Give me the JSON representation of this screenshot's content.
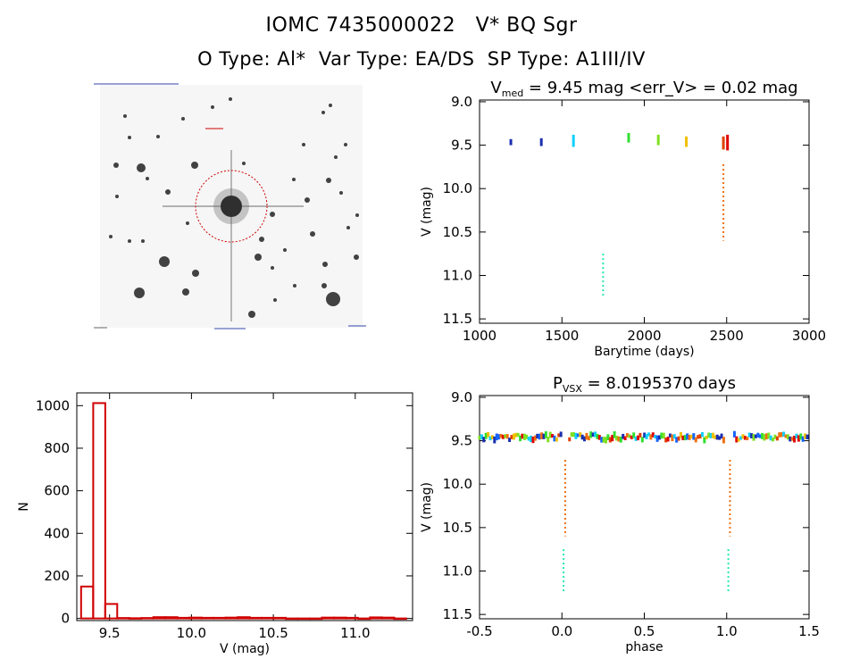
{
  "header": {
    "title": "IOMC 7435000022   V* BQ Sgr",
    "subtitle": "O Type: Al*  Var Type: EA/DS  SP Type: A1III/IV"
  },
  "sky_image": {
    "caption": "finder image of the field around V* BQ Sgr",
    "marker_color": "#d00000"
  },
  "colors": {
    "c1": "#1a2fb0",
    "c2": "#1464ff",
    "c3": "#10d0ff",
    "c4": "#20e8b0",
    "c5": "#30e030",
    "c6": "#80e020",
    "c7": "#f0c000",
    "c8": "#f07010",
    "c9": "#e04000",
    "c10": "#e00000",
    "hist": "#d00000"
  },
  "chart_data": [
    {
      "id": "lightcurve",
      "type": "scatter",
      "title_main": "V",
      "title_sub": "med",
      "title_rest": " = 9.45 mag <err_V> = 0.02 mag",
      "xlabel": "Barytime (days)",
      "ylabel": "V (mag)",
      "xlim": [
        1000,
        3000
      ],
      "ylim": [
        11.55,
        8.98
      ],
      "xticks": [
        "1000",
        "1500",
        "2000",
        "2500",
        "3000"
      ],
      "xtick_values": [
        1000,
        1500,
        2000,
        2500,
        3000
      ],
      "yticks": [
        "9.0",
        "9.5",
        "10.0",
        "10.5",
        "11.0",
        "11.5"
      ],
      "ytick_values": [
        9.0,
        9.5,
        10.0,
        10.5,
        11.0,
        11.5
      ],
      "series": [
        {
          "color": "c1",
          "x": 1190,
          "y1": 9.43,
          "y2": 9.5
        },
        {
          "color": "c1",
          "x": 1375,
          "y1": 9.42,
          "y2": 9.51
        },
        {
          "color": "c3",
          "x": 1570,
          "y1": 9.38,
          "y2": 9.52
        },
        {
          "color": "c4",
          "x": 1750,
          "y1": 10.75,
          "y2": 11.25,
          "dotted": true
        },
        {
          "color": "c5",
          "x": 1905,
          "y1": 9.36,
          "y2": 9.47
        },
        {
          "color": "c6",
          "x": 2085,
          "y1": 9.38,
          "y2": 9.5
        },
        {
          "color": "c7",
          "x": 2255,
          "y1": 9.4,
          "y2": 9.52
        },
        {
          "color": "c8",
          "x": 2480,
          "y1": 9.72,
          "y2": 10.6,
          "dotted": true
        },
        {
          "color": "c9",
          "x": 2480,
          "y1": 9.4,
          "y2": 9.55
        },
        {
          "color": "c10",
          "x": 2505,
          "y1": 9.38,
          "y2": 9.56
        }
      ]
    },
    {
      "id": "histogram",
      "type": "bar",
      "xlabel": "V (mag)",
      "ylabel": "N",
      "xlim": [
        9.3,
        11.35
      ],
      "ylim": [
        -10,
        1060
      ],
      "xticks": [
        "9.5",
        "10.0",
        "10.5",
        "11.0"
      ],
      "xtick_values": [
        9.5,
        10.0,
        10.5,
        11.0
      ],
      "yticks": [
        "0",
        "200",
        "400",
        "600",
        "800",
        "1000"
      ],
      "ytick_values": [
        0,
        200,
        400,
        600,
        800,
        1000
      ],
      "bin_width": 0.0735,
      "bins": [
        {
          "x": 9.363,
          "n": 150
        },
        {
          "x": 9.437,
          "n": 1012
        },
        {
          "x": 9.51,
          "n": 68
        },
        {
          "x": 9.584,
          "n": 2
        },
        {
          "x": 9.657,
          "n": 1
        },
        {
          "x": 9.731,
          "n": 2
        },
        {
          "x": 9.804,
          "n": 6
        },
        {
          "x": 9.878,
          "n": 6
        },
        {
          "x": 9.951,
          "n": 3
        },
        {
          "x": 10.025,
          "n": 4
        },
        {
          "x": 10.098,
          "n": 3
        },
        {
          "x": 10.172,
          "n": 3
        },
        {
          "x": 10.245,
          "n": 4
        },
        {
          "x": 10.319,
          "n": 6
        },
        {
          "x": 10.392,
          "n": 3
        },
        {
          "x": 10.466,
          "n": 3
        },
        {
          "x": 10.539,
          "n": 3
        },
        {
          "x": 10.613,
          "n": 0
        },
        {
          "x": 10.686,
          "n": 0
        },
        {
          "x": 10.76,
          "n": 0
        },
        {
          "x": 10.833,
          "n": 4
        },
        {
          "x": 10.907,
          "n": 4
        },
        {
          "x": 10.98,
          "n": 3
        },
        {
          "x": 11.054,
          "n": 0
        },
        {
          "x": 11.127,
          "n": 5
        },
        {
          "x": 11.201,
          "n": 4
        },
        {
          "x": 11.274,
          "n": 0
        }
      ]
    },
    {
      "id": "phased",
      "type": "scatter",
      "title_main": "P",
      "title_sub": "VSX",
      "title_rest": " = 8.0195370 days",
      "xlabel": "phase",
      "ylabel": "V (mag)",
      "xlim": [
        -0.5,
        1.5
      ],
      "ylim": [
        11.55,
        8.98
      ],
      "xticks": [
        "-0.5",
        "0.0",
        "0.5",
        "1.0",
        "1.5"
      ],
      "xtick_values": [
        -0.5,
        0.0,
        0.5,
        1.0,
        1.5
      ],
      "yticks": [
        "9.0",
        "9.5",
        "10.0",
        "10.5",
        "11.0",
        "11.5"
      ],
      "ytick_values": [
        9.0,
        9.5,
        10.0,
        10.5,
        11.0,
        11.5
      ],
      "series": [
        {
          "color": "c8",
          "x": 0.02,
          "y1": 9.72,
          "y2": 10.6,
          "dotted": true
        },
        {
          "color": "c4",
          "x": 0.01,
          "y1": 10.75,
          "y2": 11.25,
          "dotted": true
        },
        {
          "color": "c8",
          "x": 1.02,
          "y1": 9.72,
          "y2": 10.6,
          "dotted": true
        },
        {
          "color": "c4",
          "x": 1.01,
          "y1": 10.75,
          "y2": 11.25,
          "dotted": true
        }
      ],
      "band": {
        "y_center": 9.46,
        "y_spread": 0.07,
        "x_min": -0.5,
        "x_max": 1.5,
        "gap_centers": [
          0.015,
          1.015
        ],
        "gap_halfwidth": 0.02,
        "colors": [
          "c1",
          "c2",
          "c3",
          "c5",
          "c6",
          "c7",
          "c8",
          "c9",
          "c10"
        ]
      }
    }
  ]
}
